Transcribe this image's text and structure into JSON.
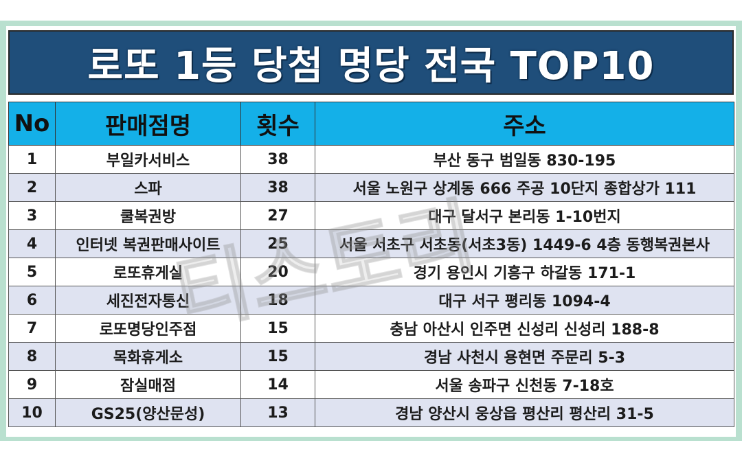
{
  "title": "로또 1등 당첨 명당 전국 TOP10",
  "columns": {
    "no": "No",
    "name": "판매점명",
    "count": "횟수",
    "address": "주소"
  },
  "rows": [
    {
      "no": "1",
      "name": "부일카서비스",
      "count": "38",
      "address": "부산 동구 범일동 830-195"
    },
    {
      "no": "2",
      "name": "스파",
      "count": "38",
      "address": "서울 노원구 상계동 666 주공 10단지 종합상가 111"
    },
    {
      "no": "3",
      "name": "쿨복권방",
      "count": "27",
      "address": "대구 달서구 본리동 1-10번지"
    },
    {
      "no": "4",
      "name": "인터넷 복권판매사이트",
      "count": "25",
      "address": "서울 서초구 서초동(서초3동) 1449-6 4층 동행복권본사"
    },
    {
      "no": "5",
      "name": "로또휴게실",
      "count": "20",
      "address": "경기 용인시 기흥구 하갈동 171-1"
    },
    {
      "no": "6",
      "name": "세진전자통신",
      "count": "18",
      "address": "대구 서구 평리동 1094-4"
    },
    {
      "no": "7",
      "name": "로또명당인주점",
      "count": "15",
      "address": "충남 아산시 인주면 신성리 신성리 188-8"
    },
    {
      "no": "8",
      "name": "목화휴게소",
      "count": "15",
      "address": "경남 사천시 용현면 주문리 5-3"
    },
    {
      "no": "9",
      "name": "잠실매점",
      "count": "14",
      "address": "서울 송파구 신천동 7-18호"
    },
    {
      "no": "10",
      "name": "GS25(양산문성)",
      "count": "13",
      "address": "경남 양산시 웅상읍 평산리 평산리 31-5"
    }
  ],
  "colors": {
    "frame": "#b9e0cf",
    "title_bg": "#1f4e7a",
    "header_bg": "#14b0e8",
    "stripe": "#dfe3f1"
  }
}
